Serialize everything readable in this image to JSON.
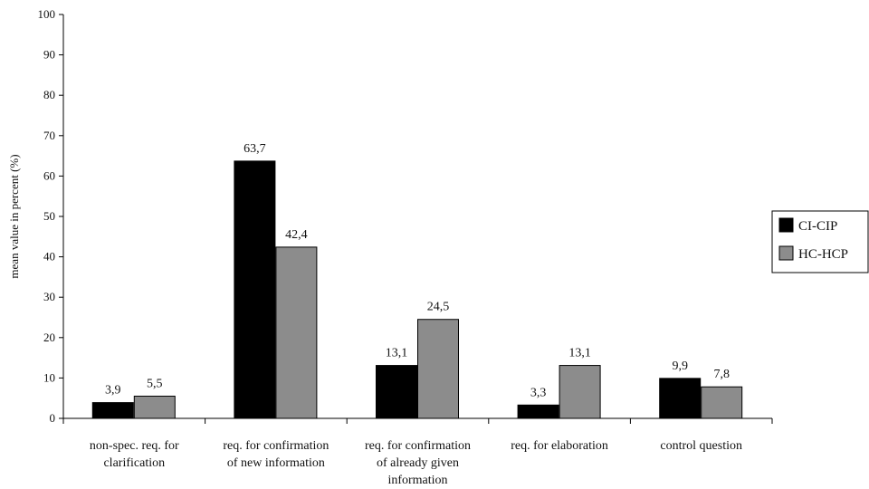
{
  "chart_data": {
    "type": "bar",
    "title": "",
    "xlabel": "",
    "ylabel": "mean value in percent (%)",
    "ylim": [
      0,
      100
    ],
    "yticks": [
      0,
      10,
      20,
      30,
      40,
      50,
      60,
      70,
      80,
      90,
      100
    ],
    "grid": false,
    "legend_position": "right",
    "categories": [
      [
        "non-spec. req. for",
        "clarification"
      ],
      [
        "req. for confirmation",
        "of new information"
      ],
      [
        "req. for confirmation",
        "of already given",
        "information"
      ],
      [
        "req. for elaboration"
      ],
      [
        "control question"
      ]
    ],
    "series": [
      {
        "name": "CI-CIP",
        "color": "#000000",
        "values": [
          3.9,
          63.7,
          13.1,
          3.3,
          9.9
        ],
        "labels": [
          "3,9",
          "63,7",
          "13,1",
          "3,3",
          "9,9"
        ]
      },
      {
        "name": "HC-HCP",
        "color": "#8c8c8c",
        "values": [
          5.5,
          42.4,
          24.5,
          13.1,
          7.8
        ],
        "labels": [
          "5,5",
          "42,4",
          "24,5",
          "13,1",
          "7,8"
        ]
      }
    ]
  }
}
